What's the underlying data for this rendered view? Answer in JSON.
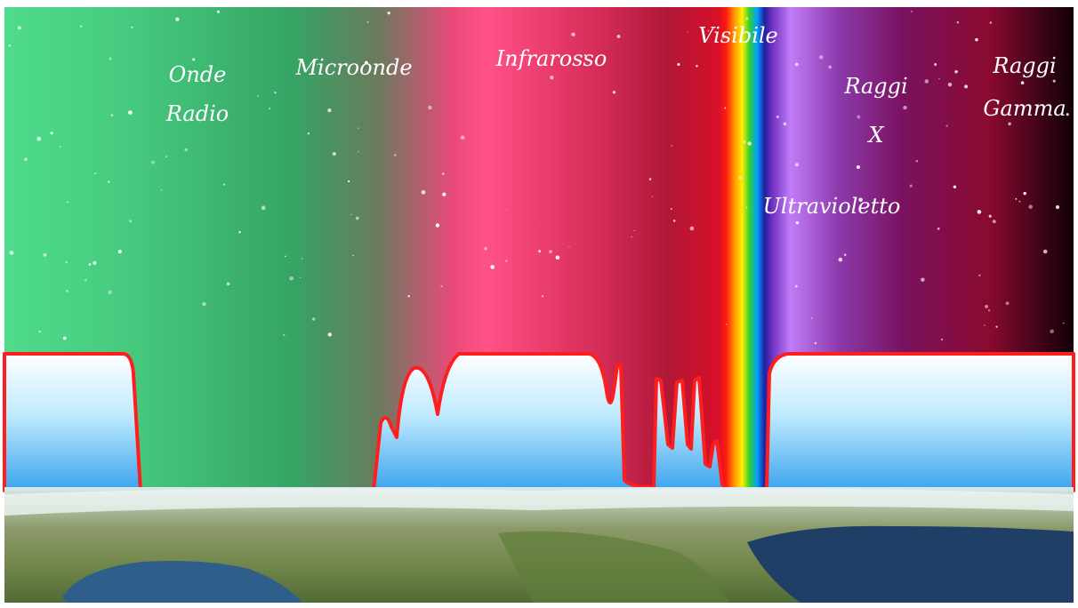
{
  "labels": [
    {
      "lines": [
        "Onde",
        "Radio"
      ]
    },
    {
      "lines": [
        "Microonde"
      ]
    },
    {
      "lines": [
        "Infrarosso"
      ]
    },
    {
      "lines": [
        "Visibile"
      ]
    },
    {
      "lines": [
        "Raggi",
        "X"
      ]
    },
    {
      "lines": [
        "Raggi",
        "Gamma"
      ]
    },
    {
      "lines": [
        "Ultravioletto"
      ]
    }
  ]
}
